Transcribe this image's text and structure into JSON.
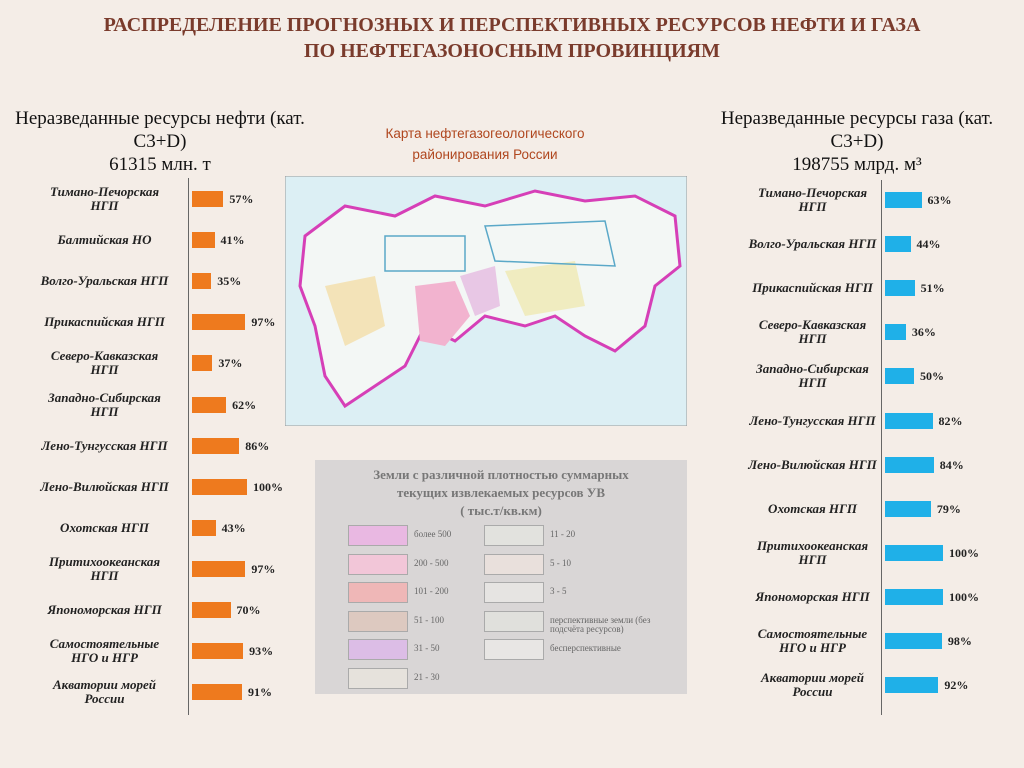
{
  "title": [
    "РАСПРЕДЕЛЕНИЕ ПРОГНОЗНЫХ И ПЕРСПЕКТИВНЫХ РЕСУРСОВ НЕФТИ И ГАЗА",
    "ПО НЕФТЕГАЗОНОСНЫМ ПРОВИНЦИЯМ"
  ],
  "map": {
    "caption": [
      "Карта нефтегазогеологического",
      "районирования России"
    ]
  },
  "legend": {
    "title": [
      "Земли с различной плотностью суммарных",
      "текущих извлекаемых ресурсов УВ",
      "( тыс.т/кв.км)"
    ],
    "items": [
      {
        "label": "более 500",
        "color": "#e9b8e2"
      },
      {
        "label": "200 - 500",
        "color": "#f2c6d8"
      },
      {
        "label": "101 - 200",
        "color": "#efb7b7"
      },
      {
        "label": "51 - 100",
        "color": "#ddc9c0"
      },
      {
        "label": "31 - 50",
        "color": "#dcbde6"
      },
      {
        "label": "21 - 30",
        "color": "#e6e2dc"
      },
      {
        "label": "11 - 20",
        "color": "#e2e2de"
      },
      {
        "label": "5 - 10",
        "color": "#e9e0dc"
      },
      {
        "label": "3 - 5",
        "color": "#e6e4e2"
      },
      {
        "label": "перспективные земли (без подсчёта ресурсов)",
        "color": "#e0e0dc"
      },
      {
        "label": "бесперспективные",
        "color": "#e8e6e4"
      }
    ]
  },
  "chart_data": [
    {
      "type": "bar",
      "orientation": "horizontal",
      "title": "Неразведанные ресурсы нефти (кат. С3+D)",
      "subtitle": "61315 млн. т",
      "color": "#ee7a1e",
      "categories": [
        "Тимано-Печорская НГП",
        "Балтийская НО",
        "Волго-Уральская НГП",
        "Прикаспийская НГП",
        "Северо-Кавказская НГП",
        "Западно-Сибирская НГП",
        "Лено-Тунгусская НГП",
        "Лено-Вилюйская НГП",
        "Охотская НГП",
        "Притихоокеанская НГП",
        "Япономорская НГП",
        "Самостоятельные НГО и НГР",
        "Акватории морей России"
      ],
      "values": [
        57,
        41,
        35,
        97,
        37,
        62,
        86,
        100,
        43,
        97,
        70,
        93,
        91
      ],
      "value_labels": [
        "57%",
        "41%",
        "35%",
        "97%",
        "37%",
        "62%",
        "86%",
        "100%",
        "43%",
        "97%",
        "70%",
        "93%",
        "91%"
      ]
    },
    {
      "type": "bar",
      "orientation": "horizontal",
      "title": "Неразведанные ресурсы газа (кат. С3+D)",
      "subtitle": "198755 млрд. м³",
      "color": "#1fb0e8",
      "categories": [
        "Тимано-Печорская НГП",
        "Волго-Уральская НГП",
        "Прикаспийская НГП",
        "Северо-Кавказская НГП",
        "Западно-Сибирская НГП",
        "Лено-Тунгусская НГП",
        "Лено-Вилюйская НГП",
        "Охотская НГП",
        "Притихоокеанская НГП",
        "Япономорская НГП",
        "Самостоятельные НГО и НГР",
        "Акватории морей России"
      ],
      "values": [
        63,
        44,
        51,
        36,
        50,
        82,
        84,
        79,
        100,
        100,
        98,
        92
      ],
      "value_labels": [
        "63%",
        "44%",
        "51%",
        "36%",
        "50%",
        "82%",
        "84%",
        "79%",
        "100%",
        "100%",
        "98%",
        "92%"
      ]
    }
  ]
}
